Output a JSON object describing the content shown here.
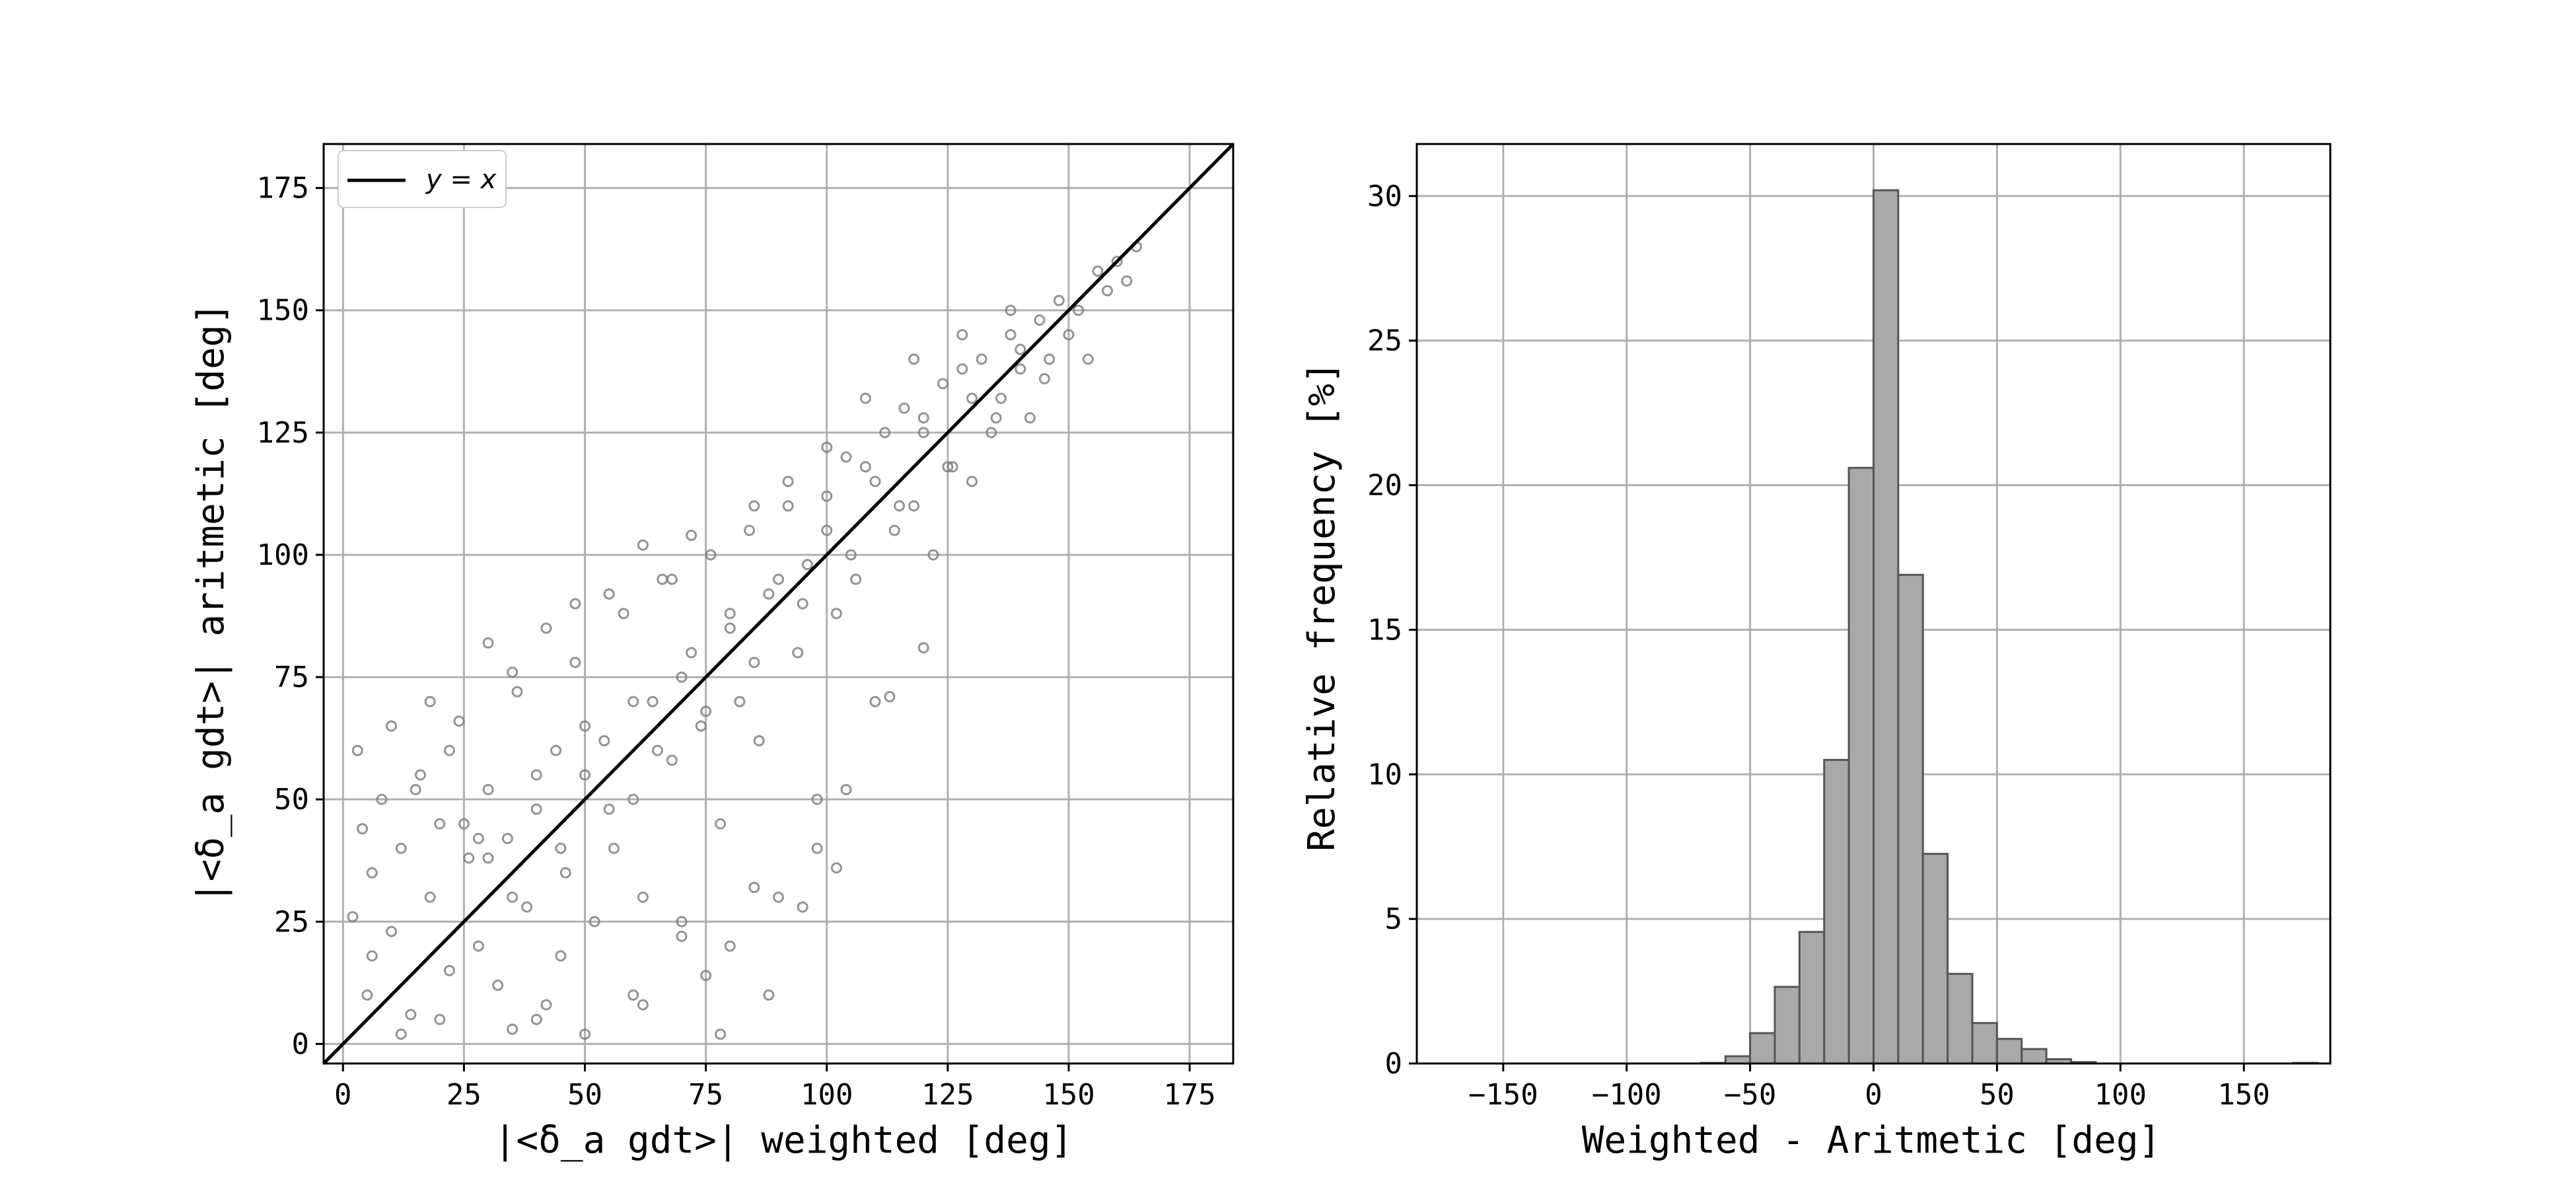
{
  "chart_data": [
    {
      "type": "scatter",
      "xlabel": "|<δ_a gdt>| weighted [deg]",
      "ylabel": "|<δ_a gdt>| aritmetic [deg]",
      "xlim": [
        -4,
        184
      ],
      "ylim": [
        -4,
        184
      ],
      "xticks": [
        0,
        25,
        50,
        75,
        100,
        125,
        150,
        175
      ],
      "yticks": [
        0,
        25,
        50,
        75,
        100,
        125,
        150,
        175
      ],
      "grid": true,
      "legend": {
        "placement": "top-left",
        "entries": [
          "y = x"
        ]
      },
      "reference_line": {
        "label": "y = x",
        "color": "#000000",
        "from": [
          -4,
          -4
        ],
        "to": [
          184,
          184
        ]
      },
      "marker_color": "#808080",
      "points": [
        [
          2,
          26
        ],
        [
          3,
          60
        ],
        [
          4,
          44
        ],
        [
          5,
          10
        ],
        [
          6,
          35
        ],
        [
          8,
          50
        ],
        [
          10,
          23
        ],
        [
          12,
          40
        ],
        [
          14,
          6
        ],
        [
          16,
          55
        ],
        [
          18,
          30
        ],
        [
          20,
          45
        ],
        [
          22,
          15
        ],
        [
          24,
          66
        ],
        [
          26,
          38
        ],
        [
          28,
          20
        ],
        [
          30,
          52
        ],
        [
          32,
          12
        ],
        [
          34,
          42
        ],
        [
          36,
          72
        ],
        [
          38,
          28
        ],
        [
          40,
          48
        ],
        [
          42,
          8
        ],
        [
          44,
          60
        ],
        [
          46,
          35
        ],
        [
          48,
          78
        ],
        [
          50,
          55
        ],
        [
          52,
          25
        ],
        [
          54,
          62
        ],
        [
          56,
          40
        ],
        [
          58,
          88
        ],
        [
          60,
          50
        ],
        [
          62,
          30
        ],
        [
          64,
          70
        ],
        [
          66,
          95
        ],
        [
          68,
          58
        ],
        [
          70,
          22
        ],
        [
          72,
          80
        ],
        [
          74,
          65
        ],
        [
          76,
          100
        ],
        [
          78,
          45
        ],
        [
          80,
          88
        ],
        [
          82,
          70
        ],
        [
          84,
          105
        ],
        [
          86,
          62
        ],
        [
          88,
          92
        ],
        [
          90,
          30
        ],
        [
          92,
          110
        ],
        [
          94,
          80
        ],
        [
          96,
          98
        ],
        [
          98,
          50
        ],
        [
          100,
          112
        ],
        [
          102,
          88
        ],
        [
          104,
          120
        ],
        [
          106,
          95
        ],
        [
          108,
          118
        ],
        [
          110,
          70
        ],
        [
          112,
          125
        ],
        [
          114,
          105
        ],
        [
          116,
          130
        ],
        [
          118,
          110
        ],
        [
          120,
          128
        ],
        [
          122,
          100
        ],
        [
          124,
          135
        ],
        [
          126,
          118
        ],
        [
          128,
          138
        ],
        [
          130,
          115
        ],
        [
          132,
          140
        ],
        [
          134,
          125
        ],
        [
          136,
          132
        ],
        [
          138,
          145
        ],
        [
          140,
          138
        ],
        [
          142,
          128
        ],
        [
          144,
          148
        ],
        [
          146,
          140
        ],
        [
          148,
          152
        ],
        [
          150,
          145
        ],
        [
          152,
          150
        ],
        [
          154,
          140
        ],
        [
          156,
          158
        ],
        [
          158,
          154
        ],
        [
          160,
          160
        ],
        [
          162,
          156
        ],
        [
          164,
          163
        ],
        [
          25,
          45
        ],
        [
          30,
          38
        ],
        [
          28,
          42
        ],
        [
          35,
          30
        ],
        [
          40,
          55
        ],
        [
          45,
          40
        ],
        [
          50,
          65
        ],
        [
          55,
          48
        ],
        [
          60,
          70
        ],
        [
          65,
          60
        ],
        [
          70,
          75
        ],
        [
          75,
          68
        ],
        [
          80,
          85
        ],
        [
          85,
          78
        ],
        [
          90,
          95
        ],
        [
          95,
          90
        ],
        [
          100,
          105
        ],
        [
          105,
          100
        ],
        [
          110,
          115
        ],
        [
          115,
          110
        ],
        [
          120,
          125
        ],
        [
          125,
          118
        ],
        [
          130,
          132
        ],
        [
          135,
          128
        ],
        [
          140,
          142
        ],
        [
          145,
          136
        ],
        [
          12,
          2
        ],
        [
          20,
          5
        ],
        [
          35,
          3
        ],
        [
          50,
          2
        ],
        [
          60,
          10
        ],
        [
          75,
          14
        ],
        [
          80,
          20
        ],
        [
          88,
          10
        ],
        [
          95,
          28
        ],
        [
          104,
          52
        ],
        [
          78,
          2
        ],
        [
          85,
          32
        ],
        [
          98,
          40
        ],
        [
          102,
          36
        ],
        [
          113,
          71
        ],
        [
          120,
          81
        ],
        [
          70,
          25
        ],
        [
          62,
          8
        ],
        [
          45,
          18
        ],
        [
          40,
          5
        ],
        [
          6,
          18
        ],
        [
          15,
          52
        ],
        [
          10,
          65
        ],
        [
          18,
          70
        ],
        [
          22,
          60
        ],
        [
          30,
          82
        ],
        [
          35,
          76
        ],
        [
          42,
          85
        ],
        [
          48,
          90
        ],
        [
          55,
          92
        ],
        [
          62,
          102
        ],
        [
          68,
          95
        ],
        [
          72,
          104
        ],
        [
          85,
          110
        ],
        [
          92,
          115
        ],
        [
          100,
          122
        ],
        [
          108,
          132
        ],
        [
          118,
          140
        ],
        [
          128,
          145
        ],
        [
          138,
          150
        ]
      ]
    },
    {
      "type": "bar",
      "xlabel": "Weighted - Aritmetic [deg]",
      "ylabel": "Relative frequency [%]",
      "xlim": [
        -185,
        185
      ],
      "ylim": [
        0,
        31.8
      ],
      "xticks": [
        -150,
        -100,
        -50,
        0,
        50,
        100,
        150
      ],
      "yticks": [
        0,
        5,
        10,
        15,
        20,
        25,
        30
      ],
      "grid": true,
      "bar_color": "#a9a9a9",
      "bin_width": 10,
      "bin_centers": [
        -175,
        -165,
        -155,
        -145,
        -135,
        -125,
        -115,
        -105,
        -95,
        -85,
        -75,
        -65,
        -55,
        -45,
        -35,
        -25,
        -15,
        -5,
        5,
        15,
        25,
        35,
        45,
        55,
        65,
        75,
        85,
        95,
        105,
        115,
        125,
        135,
        145,
        155,
        165,
        175
      ],
      "values": [
        0,
        0,
        0,
        0,
        0,
        0,
        0,
        0,
        0,
        0,
        0,
        0.02,
        0.25,
        1.05,
        2.65,
        4.55,
        10.5,
        20.6,
        30.2,
        16.9,
        7.25,
        3.1,
        1.4,
        0.85,
        0.5,
        0.15,
        0.05,
        0,
        0,
        0,
        0,
        0,
        0,
        0,
        0,
        0.02
      ]
    }
  ]
}
